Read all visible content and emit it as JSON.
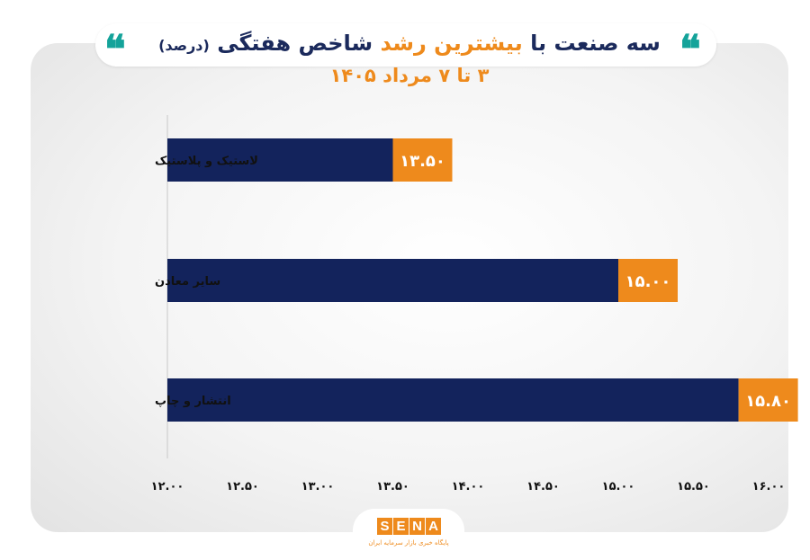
{
  "header": {
    "title_part1": "سه صنعت با",
    "title_highlight": "بیشترین رشد",
    "title_part2": "شاخص هفتگی",
    "title_unit": "(درصد)",
    "subtitle": "۳ تا ۷ مرداد ۱۴۰۵",
    "quote_glyph": "❝",
    "accent_color": "#ee8a1c",
    "quote_color": "#14a39a"
  },
  "chart_data": {
    "type": "bar",
    "orientation": "horizontal",
    "categories": [
      "لاستیک و پلاستیک",
      "سایر معادن",
      "انتشار و چاپ"
    ],
    "values": [
      13.5,
      15.0,
      15.8
    ],
    "value_labels": [
      "۱۳.۵۰",
      "۱۵.۰۰",
      "۱۵.۸۰"
    ],
    "xlim": [
      12.0,
      16.0
    ],
    "ticks": [
      12.0,
      12.5,
      13.0,
      13.5,
      14.0,
      14.5,
      15.0,
      15.5,
      16.0
    ],
    "tick_labels": [
      "۱۲.۰۰",
      "۱۲.۵۰",
      "۱۳.۰۰",
      "۱۳.۵۰",
      "۱۴.۰۰",
      "۱۴.۵۰",
      "۱۵.۰۰",
      "۱۵.۵۰",
      "۱۶.۰۰"
    ],
    "bar_color": "#13235c",
    "label_bg_color": "#ee8a1c",
    "grid": false
  },
  "logo": {
    "letters": [
      "S",
      "E",
      "N",
      "A"
    ],
    "tagline": "پایگاه خبری بازار سرمایه ایران"
  }
}
